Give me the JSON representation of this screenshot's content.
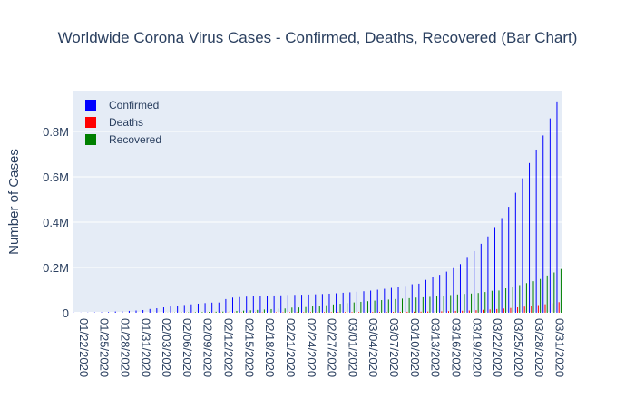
{
  "chart_data": {
    "type": "bar",
    "title": "Worldwide Corona Virus Cases - Confirmed, Deaths, Recovered (Bar Chart)",
    "xlabel": "",
    "ylabel": "Number of Cases",
    "ylim": [
      0,
      980000
    ],
    "y_ticks": [
      {
        "value": 0,
        "label": "0"
      },
      {
        "value": 200000,
        "label": "0.2M"
      },
      {
        "value": 400000,
        "label": "0.4M"
      },
      {
        "value": 600000,
        "label": "0.6M"
      },
      {
        "value": 800000,
        "label": "0.8M"
      }
    ],
    "x_tick_labels": [
      "01/22/2020",
      "01/25/2020",
      "01/28/2020",
      "01/31/2020",
      "02/03/2020",
      "02/06/2020",
      "02/09/2020",
      "02/12/2020",
      "02/15/2020",
      "02/18/2020",
      "02/21/2020",
      "02/24/2020",
      "02/27/2020",
      "03/01/2020",
      "03/04/2020",
      "03/07/2020",
      "03/10/2020",
      "03/13/2020",
      "03/16/2020",
      "03/19/2020",
      "03/22/2020",
      "03/25/2020",
      "03/28/2020",
      "03/31/2020"
    ],
    "categories": [
      "01/22/2020",
      "01/23/2020",
      "01/24/2020",
      "01/25/2020",
      "01/26/2020",
      "01/27/2020",
      "01/28/2020",
      "01/29/2020",
      "01/30/2020",
      "01/31/2020",
      "02/01/2020",
      "02/02/2020",
      "02/03/2020",
      "02/04/2020",
      "02/05/2020",
      "02/06/2020",
      "02/07/2020",
      "02/08/2020",
      "02/09/2020",
      "02/10/2020",
      "02/11/2020",
      "02/12/2020",
      "02/13/2020",
      "02/14/2020",
      "02/15/2020",
      "02/16/2020",
      "02/17/2020",
      "02/18/2020",
      "02/19/2020",
      "02/20/2020",
      "02/21/2020",
      "02/22/2020",
      "02/23/2020",
      "02/24/2020",
      "02/25/2020",
      "02/26/2020",
      "02/27/2020",
      "02/28/2020",
      "02/29/2020",
      "03/01/2020",
      "03/02/2020",
      "03/03/2020",
      "03/04/2020",
      "03/05/2020",
      "03/06/2020",
      "03/07/2020",
      "03/08/2020",
      "03/09/2020",
      "03/10/2020",
      "03/11/2020",
      "03/12/2020",
      "03/13/2020",
      "03/14/2020",
      "03/15/2020",
      "03/16/2020",
      "03/17/2020",
      "03/18/2020",
      "03/19/2020",
      "03/20/2020",
      "03/21/2020",
      "03/22/2020",
      "03/23/2020",
      "03/24/2020",
      "03/25/2020",
      "03/26/2020",
      "03/27/2020",
      "03/28/2020",
      "03/29/2020",
      "03/30/2020",
      "03/31/2020",
      "04/01/2020"
    ],
    "series": [
      {
        "name": "Confirmed",
        "color": "#0000ff",
        "values": [
          555,
          654,
          941,
          1434,
          2118,
          2927,
          5578,
          6166,
          8234,
          9927,
          12038,
          16787,
          19881,
          23892,
          27635,
          30794,
          34391,
          37120,
          40150,
          42762,
          44802,
          45221,
          60368,
          66885,
          69030,
          71224,
          73258,
          75136,
          75639,
          76197,
          76819,
          78572,
          78958,
          79561,
          80406,
          81388,
          82746,
          84112,
          86011,
          88369,
          90306,
          92840,
          95120,
          97886,
          101800,
          105847,
          109821,
          113590,
          118620,
          125875,
          128352,
          145205,
          156101,
          167454,
          181574,
          197102,
          214821,
          242570,
          272208,
          304507,
          336953,
          378235,
          418045,
          467653,
          529591,
          593291,
          660706,
          720117,
          782365,
          857487,
          932605
        ]
      },
      {
        "name": "Deaths",
        "color": "#ff0000",
        "values": [
          17,
          18,
          26,
          42,
          56,
          82,
          131,
          133,
          171,
          213,
          259,
          362,
          426,
          492,
          564,
          634,
          719,
          806,
          906,
          1013,
          1113,
          1118,
          1371,
          1523,
          1666,
          1770,
          1868,
          2007,
          2122,
          2247,
          2251,
          2458,
          2469,
          2629,
          2708,
          2770,
          2814,
          2872,
          2941,
          2996,
          3085,
          3160,
          3254,
          3348,
          3460,
          3558,
          3802,
          3988,
          4262,
          4615,
          4720,
          5404,
          5819,
          6440,
          7126,
          7905,
          8733,
          9867,
          11299,
          12973,
          14651,
          16505,
          18625,
          21181,
          23970,
          27198,
          30652,
          33925,
          37582,
          42107,
          46809
        ]
      },
      {
        "name": "Recovered",
        "color": "#008000",
        "values": [
          28,
          30,
          36,
          39,
          52,
          61,
          107,
          126,
          143,
          222,
          284,
          472,
          623,
          852,
          1124,
          1487,
          2011,
          2616,
          3244,
          3946,
          4683,
          5150,
          6295,
          8058,
          9395,
          10865,
          12583,
          14352,
          16121,
          18177,
          18890,
          22886,
          23394,
          25227,
          27905,
          30384,
          33277,
          36711,
          39782,
          42716,
          45602,
          48228,
          51170,
          53796,
          55865,
          58358,
          60694,
          62494,
          64404,
          67003,
          68324,
          70251,
          72624,
          76034,
          78088,
          80840,
          83207,
          84854,
          87256,
          91676,
          97243,
          98334,
          108000,
          114091,
          122150,
          130915,
          139415,
          149082,
          164566,
          178034,
          193177
        ]
      }
    ],
    "legend_position": "top-left",
    "grid": true,
    "plot_background": "#e5ecf6"
  }
}
